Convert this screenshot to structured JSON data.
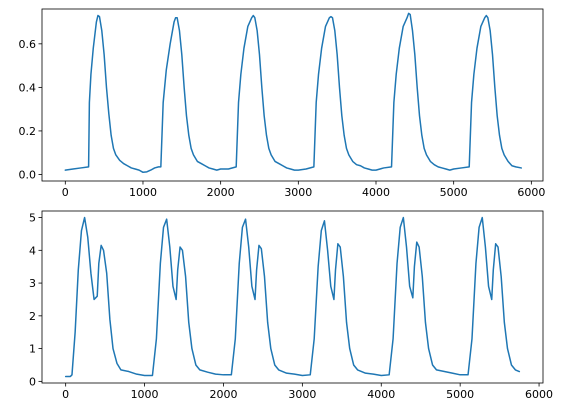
{
  "chart_data": [
    {
      "type": "line",
      "title": "",
      "xlabel": "",
      "ylabel": "",
      "xlim": [
        -300,
        6150
      ],
      "ylim": [
        -0.03,
        0.76
      ],
      "xticks": [
        0,
        1000,
        2000,
        3000,
        4000,
        5000,
        6000
      ],
      "xtick_labels": [
        "0",
        "1000",
        "2000",
        "3000",
        "4000",
        "5000",
        "6000"
      ],
      "yticks": [
        0.0,
        0.2,
        0.4,
        0.6
      ],
      "ytick_labels": [
        "0.0",
        "0.2",
        "0.4",
        "0.6"
      ],
      "grid": false,
      "color": "#1f77b4",
      "series": [
        {
          "x": [
            0,
            100,
            200,
            300,
            310,
            330,
            360,
            400,
            420,
            440,
            470,
            500,
            530,
            560,
            590,
            620,
            650,
            700,
            750,
            800,
            850,
            900,
            950,
            1000,
            1050,
            1100,
            1150,
            1200,
            1230,
            1260,
            1300,
            1350,
            1400,
            1420,
            1440,
            1470,
            1500,
            1530,
            1560,
            1590,
            1620,
            1650,
            1700,
            1750,
            1800,
            1850,
            1900,
            1950,
            2000,
            2100,
            2200,
            2230,
            2260,
            2300,
            2350,
            2400,
            2420,
            2440,
            2470,
            2500,
            2530,
            2560,
            2590,
            2620,
            2650,
            2700,
            2750,
            2800,
            2850,
            2900,
            2950,
            3000,
            3100,
            3200,
            3230,
            3260,
            3300,
            3350,
            3400,
            3420,
            3440,
            3470,
            3500,
            3530,
            3560,
            3590,
            3620,
            3650,
            3700,
            3750,
            3800,
            3850,
            3900,
            3950,
            4000,
            4100,
            4200,
            4230,
            4260,
            4300,
            4350,
            4400,
            4420,
            4440,
            4470,
            4500,
            4530,
            4560,
            4590,
            4620,
            4650,
            4700,
            4750,
            4800,
            4850,
            4900,
            4950,
            5000,
            5100,
            5200,
            5230,
            5260,
            5300,
            5350,
            5400,
            5420,
            5440,
            5470,
            5500,
            5530,
            5560,
            5590,
            5620,
            5650,
            5700,
            5750,
            5800,
            5870
          ],
          "y": [
            0.02,
            0.025,
            0.03,
            0.035,
            0.33,
            0.46,
            0.58,
            0.7,
            0.73,
            0.725,
            0.66,
            0.55,
            0.4,
            0.28,
            0.18,
            0.12,
            0.09,
            0.065,
            0.05,
            0.04,
            0.03,
            0.025,
            0.02,
            0.01,
            0.012,
            0.02,
            0.03,
            0.035,
            0.035,
            0.33,
            0.48,
            0.6,
            0.7,
            0.72,
            0.72,
            0.66,
            0.55,
            0.4,
            0.27,
            0.18,
            0.12,
            0.09,
            0.06,
            0.05,
            0.04,
            0.03,
            0.025,
            0.02,
            0.025,
            0.025,
            0.035,
            0.33,
            0.46,
            0.58,
            0.68,
            0.72,
            0.73,
            0.72,
            0.66,
            0.55,
            0.4,
            0.27,
            0.18,
            0.12,
            0.09,
            0.06,
            0.05,
            0.04,
            0.03,
            0.025,
            0.02,
            0.02,
            0.025,
            0.035,
            0.33,
            0.46,
            0.58,
            0.68,
            0.72,
            0.725,
            0.72,
            0.66,
            0.55,
            0.4,
            0.27,
            0.18,
            0.12,
            0.09,
            0.06,
            0.045,
            0.04,
            0.03,
            0.025,
            0.02,
            0.02,
            0.03,
            0.035,
            0.33,
            0.46,
            0.58,
            0.68,
            0.72,
            0.74,
            0.735,
            0.66,
            0.55,
            0.4,
            0.27,
            0.18,
            0.12,
            0.09,
            0.06,
            0.045,
            0.035,
            0.03,
            0.025,
            0.02,
            0.025,
            0.03,
            0.035,
            0.33,
            0.46,
            0.58,
            0.68,
            0.72,
            0.73,
            0.72,
            0.66,
            0.55,
            0.4,
            0.27,
            0.18,
            0.12,
            0.09,
            0.06,
            0.04,
            0.035,
            0.03
          ]
        }
      ]
    },
    {
      "type": "line",
      "title": "",
      "xlabel": "",
      "ylabel": "",
      "xlim": [
        -300,
        6050
      ],
      "ylim": [
        -0.05,
        5.2
      ],
      "xticks": [
        0,
        1000,
        2000,
        3000,
        4000,
        5000,
        6000
      ],
      "xtick_labels": [
        "0",
        "1000",
        "2000",
        "3000",
        "4000",
        "5000",
        "6000"
      ],
      "yticks": [
        0,
        1,
        2,
        3,
        4,
        5
      ],
      "ytick_labels": [
        "0",
        "1",
        "2",
        "3",
        "4",
        "5"
      ],
      "grid": false,
      "color": "#1f77b4",
      "series": [
        {
          "x": [
            0,
            60,
            80,
            120,
            160,
            200,
            240,
            280,
            320,
            360,
            400,
            420,
            450,
            480,
            520,
            560,
            600,
            650,
            700,
            800,
            900,
            1000,
            1100,
            1150,
            1200,
            1240,
            1280,
            1320,
            1360,
            1400,
            1420,
            1450,
            1480,
            1520,
            1560,
            1600,
            1650,
            1700,
            1800,
            1900,
            2000,
            2100,
            2150,
            2200,
            2240,
            2280,
            2320,
            2360,
            2400,
            2420,
            2450,
            2480,
            2520,
            2560,
            2600,
            2650,
            2700,
            2800,
            2900,
            3000,
            3100,
            3150,
            3200,
            3240,
            3280,
            3320,
            3360,
            3400,
            3420,
            3450,
            3480,
            3520,
            3560,
            3600,
            3650,
            3700,
            3800,
            3900,
            4000,
            4100,
            4150,
            4200,
            4240,
            4280,
            4320,
            4360,
            4400,
            4420,
            4450,
            4480,
            4520,
            4560,
            4600,
            4650,
            4700,
            4800,
            4900,
            5000,
            5100,
            5150,
            5200,
            5240,
            5280,
            5320,
            5360,
            5400,
            5420,
            5450,
            5480,
            5520,
            5560,
            5600,
            5650,
            5700,
            5750
          ],
          "y": [
            0.15,
            0.15,
            0.2,
            1.5,
            3.4,
            4.6,
            5.0,
            4.4,
            3.3,
            2.5,
            2.6,
            3.6,
            4.15,
            4.0,
            3.3,
            1.9,
            1.0,
            0.55,
            0.35,
            0.3,
            0.22,
            0.18,
            0.18,
            1.3,
            3.6,
            4.7,
            4.95,
            4.1,
            2.9,
            2.5,
            3.4,
            4.1,
            4.0,
            3.2,
            1.8,
            1.0,
            0.5,
            0.35,
            0.28,
            0.22,
            0.2,
            0.2,
            1.3,
            3.6,
            4.7,
            4.95,
            4.1,
            2.9,
            2.5,
            3.4,
            4.15,
            4.05,
            3.2,
            1.8,
            1.0,
            0.5,
            0.35,
            0.25,
            0.22,
            0.18,
            0.2,
            1.3,
            3.5,
            4.6,
            4.9,
            4.0,
            2.9,
            2.5,
            3.4,
            4.2,
            4.1,
            3.2,
            1.8,
            1.0,
            0.5,
            0.35,
            0.25,
            0.22,
            0.18,
            0.2,
            1.3,
            3.6,
            4.7,
            5.0,
            4.1,
            2.9,
            2.55,
            3.5,
            4.25,
            4.1,
            3.2,
            1.8,
            1.0,
            0.5,
            0.35,
            0.3,
            0.25,
            0.2,
            0.2,
            1.3,
            3.6,
            4.7,
            5.0,
            4.1,
            2.9,
            2.5,
            3.4,
            4.2,
            4.1,
            3.2,
            1.8,
            1.0,
            0.5,
            0.35,
            0.3
          ]
        }
      ]
    }
  ]
}
